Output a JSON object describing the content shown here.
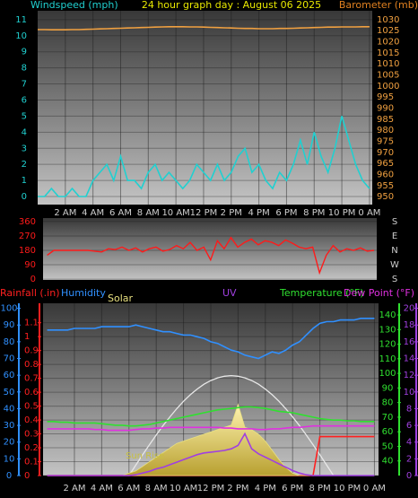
{
  "chart_data": [
    {
      "type": "line",
      "title": "24 hour graph day : August 06 2025",
      "y_label": "Windspeed (mph)",
      "y2_label": "Barometer (mb)",
      "x": [
        0,
        0.5,
        1,
        1.5,
        2,
        2.5,
        3,
        3.5,
        4,
        4.5,
        5,
        5.5,
        6,
        6.5,
        7,
        7.5,
        8,
        8.5,
        9,
        9.5,
        10,
        10.5,
        11,
        11.5,
        12,
        12.5,
        13,
        13.5,
        14,
        14.5,
        15,
        15.5,
        16,
        16.5,
        17,
        17.5,
        18,
        18.5,
        19,
        19.5,
        20,
        20.5,
        21,
        21.5,
        22,
        22.5,
        23,
        23.5,
        24
      ],
      "xlim": [
        0,
        24.2
      ],
      "xticks": [
        {
          "value": 2,
          "label": "2 AM"
        },
        {
          "value": 4,
          "label": "4 AM"
        },
        {
          "value": 6,
          "label": "6 AM"
        },
        {
          "value": 8,
          "label": "8 AM"
        },
        {
          "value": 10,
          "label": "10 AM"
        },
        {
          "value": 12,
          "label": "12 PM"
        },
        {
          "value": 14,
          "label": "2 PM"
        },
        {
          "value": 16,
          "label": "4 PM"
        },
        {
          "value": 18,
          "label": "6 PM"
        },
        {
          "value": 20,
          "label": "8 PM"
        },
        {
          "value": 22,
          "label": "10 PM"
        },
        {
          "value": 24,
          "label": "0 AM"
        }
      ],
      "ylim": [
        -0.5,
        11.55
      ],
      "yticks": [
        0,
        1,
        2,
        3,
        4,
        5,
        6,
        7,
        8,
        9,
        10,
        11
      ],
      "y2lim": [
        946.4,
        1034
      ],
      "y2ticks": [
        950,
        955,
        960,
        965,
        970,
        975,
        980,
        985,
        990,
        995,
        1000,
        1005,
        1010,
        1015,
        1020,
        1025,
        1030
      ],
      "grid": true,
      "series": [
        {
          "color": "#20d0d0",
          "values": [
            0,
            0,
            0.5,
            0,
            0,
            0.5,
            0,
            0,
            1,
            1.5,
            2,
            1,
            2.5,
            1,
            1,
            0.5,
            1.5,
            2,
            1,
            1.5,
            1,
            0.5,
            1,
            2,
            1.5,
            1,
            2,
            1,
            1.5,
            2.5,
            3,
            1.5,
            2,
            1,
            0.5,
            1.5,
            1,
            2,
            3.5,
            2,
            4,
            2.5,
            1.5,
            3,
            5,
            3.5,
            2,
            1,
            0.5
          ]
        },
        {
          "color": "#f0a040",
          "axis": "y2",
          "values": [
            1025.5,
            1025.5,
            1025.4,
            1025.4,
            1025.4,
            1025.5,
            1025.5,
            1025.6,
            1025.7,
            1025.8,
            1025.9,
            1026,
            1026.1,
            1026.2,
            1026.3,
            1026.4,
            1026.5,
            1026.6,
            1026.7,
            1026.8,
            1026.8,
            1026.8,
            1026.7,
            1026.7,
            1026.6,
            1026.5,
            1026.4,
            1026.3,
            1026.2,
            1026.1,
            1026,
            1026,
            1025.9,
            1025.9,
            1025.9,
            1026,
            1026,
            1026.1,
            1026.2,
            1026.3,
            1026.4,
            1026.5,
            1026.6,
            1026.6,
            1026.7,
            1026.7,
            1026.7,
            1026.8,
            1026.8
          ]
        }
      ]
    },
    {
      "type": "line",
      "x": [
        0,
        0.5,
        1,
        1.5,
        2,
        2.5,
        3,
        3.5,
        4,
        4.5,
        5,
        5.5,
        6,
        6.5,
        7,
        7.5,
        8,
        8.5,
        9,
        9.5,
        10,
        10.5,
        11,
        11.5,
        12,
        12.5,
        13,
        13.5,
        14,
        14.5,
        15,
        15.5,
        16,
        16.5,
        17,
        17.5,
        18,
        18.5,
        19,
        19.5,
        20,
        20.5,
        21,
        21.5,
        22,
        22.5,
        23,
        23.5,
        24
      ],
      "xlim": [
        -0.3,
        24.2
      ],
      "ylim": [
        -5,
        382
      ],
      "yticks": [
        0,
        90,
        180,
        270,
        360
      ],
      "y2lim": [
        -5,
        382
      ],
      "y2ticks": [
        {
          "value": 360,
          "label": "S"
        },
        {
          "value": 270,
          "label": "E"
        },
        {
          "value": 180,
          "label": "N"
        },
        {
          "value": 90,
          "label": "W"
        },
        {
          "value": 0,
          "label": "S"
        }
      ],
      "grid": true,
      "series": [
        {
          "color": "#ff1a1a",
          "values": [
            150,
            180,
            180,
            180,
            180,
            180,
            180,
            175,
            170,
            190,
            185,
            200,
            180,
            195,
            170,
            190,
            200,
            175,
            185,
            210,
            190,
            230,
            180,
            200,
            120,
            240,
            190,
            260,
            200,
            230,
            250,
            215,
            240,
            230,
            210,
            245,
            225,
            200,
            190,
            200,
            40,
            150,
            210,
            170,
            190,
            180,
            195,
            175,
            180
          ]
        }
      ]
    },
    {
      "type": "line",
      "x": [
        0,
        0.5,
        1,
        1.5,
        2,
        2.5,
        3,
        3.5,
        4,
        4.5,
        5,
        5.5,
        6,
        6.5,
        7,
        7.5,
        8,
        8.5,
        9,
        9.5,
        10,
        10.5,
        11,
        11.5,
        12,
        12.5,
        13,
        13.5,
        14,
        14.5,
        15,
        15.5,
        16,
        16.5,
        17,
        17.5,
        18,
        18.5,
        19,
        19.5,
        20,
        20.5,
        21,
        21.5,
        22,
        22.5,
        23,
        23.5,
        24
      ],
      "xlim": [
        -0.3,
        24.3
      ],
      "xticks": [
        {
          "value": 2,
          "label": "2 AM"
        },
        {
          "value": 4,
          "label": "4 AM"
        },
        {
          "value": 6,
          "label": "6 AM"
        },
        {
          "value": 8,
          "label": "8 AM"
        },
        {
          "value": 10,
          "label": "10 AM"
        },
        {
          "value": 12,
          "label": "12 PM"
        },
        {
          "value": 14,
          "label": "2 PM"
        },
        {
          "value": 16,
          "label": "4 PM"
        },
        {
          "value": 18,
          "label": "6 PM"
        },
        {
          "value": 20,
          "label": "8 PM"
        },
        {
          "value": 22,
          "label": "10 PM"
        },
        {
          "value": 24,
          "label": "0 AM"
        }
      ],
      "grid": true,
      "axes": [
        {
          "lim": [
            0,
            1.24
          ],
          "ticks": [
            0,
            0.1,
            0.2,
            0.3,
            0.4,
            0.5,
            0.6,
            0.7,
            0.8,
            0.9,
            1,
            1.1
          ]
        },
        {
          "lim": [
            0,
            103
          ],
          "ticks": [
            0,
            10,
            20,
            30,
            40,
            50,
            60,
            70,
            80,
            90,
            100
          ]
        },
        {
          "lim": [
            0,
            20.6
          ],
          "ticks": [
            0,
            2,
            4,
            6,
            8,
            10,
            12,
            14,
            16,
            18,
            20
          ]
        },
        {
          "lim": [
            30,
            148
          ],
          "ticks": [
            40,
            50,
            60,
            70,
            80,
            90,
            100,
            110,
            120,
            130,
            140
          ]
        },
        {
          "lim": [
            0,
            1500
          ]
        }
      ],
      "annotation": "Sun Rise",
      "solar_max": [
        null,
        null,
        null,
        null,
        null,
        null,
        null,
        null,
        null,
        null,
        null,
        null,
        0,
        91,
        181,
        269,
        354,
        435,
        511,
        582,
        647,
        704,
        753,
        795,
        827,
        851,
        865,
        870,
        865,
        851,
        827,
        795,
        753,
        704,
        647,
        582,
        511,
        435,
        354,
        269,
        181,
        91,
        0,
        null,
        null,
        null,
        null,
        null,
        null
      ],
      "series": [
        {
          "name": "Rainfall (.in)",
          "color": "#ff2020",
          "axis": 0,
          "values": [
            0,
            0,
            0,
            0,
            0,
            0,
            0,
            0,
            0,
            0,
            0,
            0,
            0,
            0,
            0,
            0,
            0,
            0,
            0,
            0,
            0,
            0,
            0,
            0,
            0,
            0,
            0,
            0,
            0,
            0,
            0,
            0,
            0,
            0,
            0,
            0,
            0,
            0,
            0,
            0,
            0.28,
            0.28,
            0.28,
            0.28,
            0.28,
            0.28,
            0.28,
            0.28,
            0.28
          ]
        },
        {
          "name": "Humidity",
          "color": "#3090ff",
          "axis": 1,
          "values": [
            87,
            87,
            87,
            87,
            88,
            88,
            88,
            88,
            89,
            89,
            89,
            89,
            89,
            90,
            89,
            88,
            87,
            86,
            86,
            85,
            84,
            84,
            83,
            82,
            80,
            79,
            77,
            75,
            74,
            72,
            71,
            70,
            72,
            74,
            73,
            75,
            78,
            80,
            84,
            88,
            91,
            92,
            92,
            93,
            93,
            93,
            94,
            94,
            94
          ]
        },
        {
          "name": "Solar",
          "color": "#e8e080",
          "axis": 4,
          "fill": true,
          "values": [
            0,
            0,
            0,
            0,
            0,
            0,
            0,
            0,
            0,
            0,
            0,
            0,
            20,
            40,
            80,
            120,
            160,
            200,
            240,
            280,
            300,
            320,
            340,
            360,
            380,
            400,
            420,
            440,
            620,
            420,
            400,
            360,
            300,
            220,
            140,
            70,
            20,
            0,
            0,
            0,
            0,
            0,
            0,
            0,
            0,
            0,
            0,
            0,
            0
          ]
        },
        {
          "name": "UV",
          "color": "#a040e0",
          "axis": 2,
          "values": [
            0,
            0,
            0,
            0,
            0,
            0,
            0,
            0,
            0,
            0,
            0,
            0,
            0,
            0.1,
            0.3,
            0.5,
            0.8,
            1,
            1.3,
            1.6,
            1.9,
            2.2,
            2.5,
            2.7,
            2.8,
            2.9,
            3,
            3.2,
            3.6,
            5,
            3.2,
            2.6,
            2.2,
            1.8,
            1.4,
            1,
            0.6,
            0.3,
            0.1,
            0,
            0,
            0,
            0,
            0,
            0,
            0,
            0,
            0,
            0
          ]
        },
        {
          "name": "Temperature (°F)",
          "color": "#30e030",
          "axis": 3,
          "values": [
            67,
            67,
            66.5,
            66.5,
            66,
            66,
            66,
            66,
            65.5,
            65,
            64.5,
            64.5,
            64,
            64,
            64.5,
            65,
            66,
            67,
            68,
            69,
            70,
            71,
            72,
            73,
            74,
            75,
            75.5,
            76,
            76.5,
            77,
            77,
            76.5,
            76,
            75,
            74,
            73.5,
            73,
            72,
            71,
            70,
            69,
            68.5,
            68,
            68,
            67.5,
            67.5,
            67,
            67,
            67
          ]
        },
        {
          "name": "Dew Point (°F)",
          "color": "#e030e0",
          "axis": 3,
          "values": [
            62,
            62,
            62,
            62,
            62,
            62,
            62,
            61.5,
            61.5,
            61,
            61,
            61,
            61,
            61.5,
            62,
            62,
            62.5,
            62.5,
            63,
            63,
            63,
            63,
            63,
            63,
            63,
            63,
            62.5,
            62.5,
            62,
            62,
            62,
            61.5,
            61.5,
            62,
            62,
            62.5,
            63,
            63,
            63.5,
            64,
            64,
            64,
            64,
            64,
            64,
            64,
            64,
            64,
            64
          ]
        }
      ]
    }
  ]
}
